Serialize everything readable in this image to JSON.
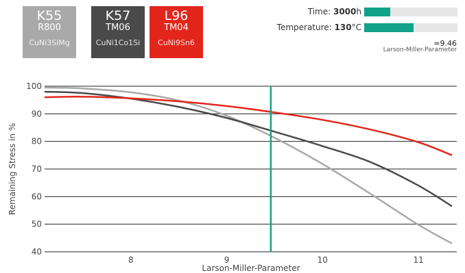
{
  "tiles": [
    {
      "code": "K55",
      "sub": "R800",
      "alloy": "CuNi3SiMg",
      "color": "#a9a9a9"
    },
    {
      "code": "K57",
      "sub": "TM06",
      "alloy": "CuNi1Co1Si",
      "color": "#4a4a4a"
    },
    {
      "code": "L96",
      "sub": "TM04",
      "alloy": "CuNi9Sn6",
      "color": "#e2261c"
    }
  ],
  "controls": {
    "time_label": "Time:",
    "time_value": "3000",
    "time_unit": "h",
    "time_fraction": 0.28,
    "temp_label": "Temperature:",
    "temp_value": "130",
    "temp_unit": "°C",
    "temp_fraction": 0.53,
    "accent_color": "#12a189"
  },
  "result": {
    "value": "=9.46",
    "label": "Larson-Miller-Parameter"
  },
  "chart_data": {
    "type": "line",
    "xlabel": "Larson-Miller-Parameter",
    "ylabel": "Remaining Stress in %",
    "xlim": [
      7.1,
      11.4
    ],
    "ylim": [
      40,
      100
    ],
    "xticks": [
      8,
      9,
      10,
      11
    ],
    "yticks": [
      40,
      50,
      60,
      70,
      80,
      90,
      100
    ],
    "grid": "horizontal",
    "marker_x": 9.46,
    "marker_color": "#12a189",
    "series": [
      {
        "color": "#a9a9a9",
        "x": [
          7.1,
          7.5,
          8.0,
          8.5,
          9.0,
          9.5,
          10.0,
          10.5,
          11.0,
          11.35
        ],
        "y": [
          99.5,
          99.2,
          97.8,
          94.8,
          89.3,
          81.3,
          71.8,
          61.0,
          49.8,
          43.0
        ]
      },
      {
        "color": "#4a4a4a",
        "x": [
          7.1,
          7.5,
          8.0,
          8.5,
          9.0,
          9.5,
          10.0,
          10.5,
          11.0,
          11.35
        ],
        "y": [
          98.0,
          97.5,
          95.5,
          92.5,
          88.5,
          83.5,
          78.3,
          72.5,
          64.0,
          56.5
        ]
      },
      {
        "color": "#e2261c",
        "x": [
          7.1,
          7.5,
          8.0,
          8.5,
          9.0,
          9.5,
          10.0,
          10.5,
          11.0,
          11.35
        ],
        "y": [
          96.0,
          96.2,
          95.6,
          94.5,
          92.8,
          90.5,
          87.8,
          84.3,
          79.7,
          75.0
        ]
      }
    ]
  }
}
